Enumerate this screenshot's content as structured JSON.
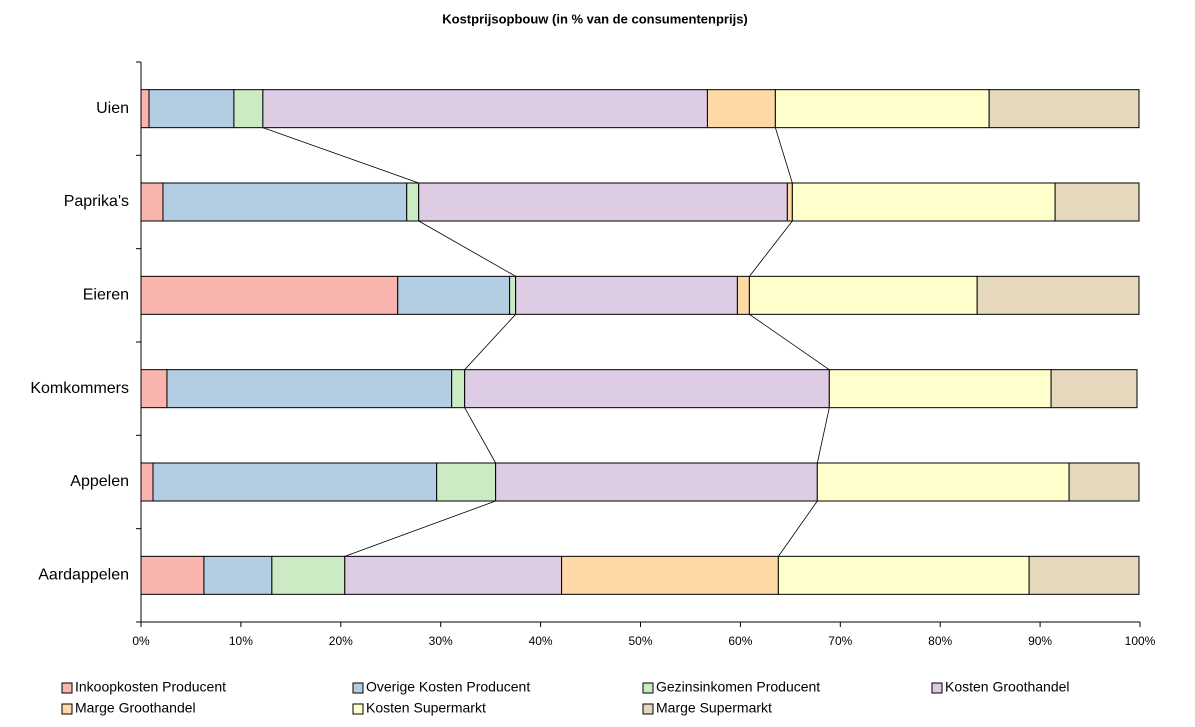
{
  "chart_data": {
    "type": "stacked_bar_horizontal",
    "title": "Kostprijsopbouw (in % van de consumentenprijs)",
    "categories": [
      "Uien",
      "Paprika's",
      "Eieren",
      "Komkommers",
      "Appelen",
      "Aardappelen"
    ],
    "series": [
      {
        "name": "Inkoopkosten Producent",
        "color": "#f9b4ae",
        "values": [
          0.8,
          2.2,
          25.7,
          2.6,
          1.2,
          6.3
        ]
      },
      {
        "name": "Overige Kosten Producent",
        "color": "#b3cde3",
        "values": [
          8.5,
          24.4,
          11.2,
          28.5,
          28.4,
          6.8
        ]
      },
      {
        "name": "Gezinsinkomen Producent",
        "color": "#ccebc5",
        "values": [
          2.9,
          1.2,
          0.6,
          1.3,
          5.9,
          7.3
        ]
      },
      {
        "name": "Kosten Groothandel",
        "color": "#decbe4",
        "values": [
          44.5,
          36.9,
          22.2,
          36.5,
          32.2,
          21.7
        ]
      },
      {
        "name": "Marge Groothandel",
        "color": "#fed9a6",
        "values": [
          6.8,
          0.5,
          1.2,
          0,
          0,
          21.7
        ]
      },
      {
        "name": "Kosten Supermarkt",
        "color": "#ffffcc",
        "values": [
          21.4,
          26.3,
          22.8,
          22.2,
          25.2,
          25.1
        ]
      },
      {
        "name": "Marge Supermarkt",
        "color": "#e5d8bd",
        "values": [
          15.0,
          8.4,
          16.2,
          8.6,
          7.0,
          11.0
        ]
      }
    ],
    "xlim": [
      0,
      100
    ],
    "xticks": [
      {
        "value": 0,
        "label": "0%"
      },
      {
        "value": 10,
        "label": "10%"
      },
      {
        "value": 20,
        "label": "20%"
      },
      {
        "value": 30,
        "label": "30%"
      },
      {
        "value": 40,
        "label": "40%"
      },
      {
        "value": 50,
        "label": "50%"
      },
      {
        "value": 60,
        "label": "60%"
      },
      {
        "value": 70,
        "label": "70%"
      },
      {
        "value": 80,
        "label": "80%"
      },
      {
        "value": 90,
        "label": "90%"
      },
      {
        "value": 100,
        "label": "100%"
      }
    ]
  }
}
